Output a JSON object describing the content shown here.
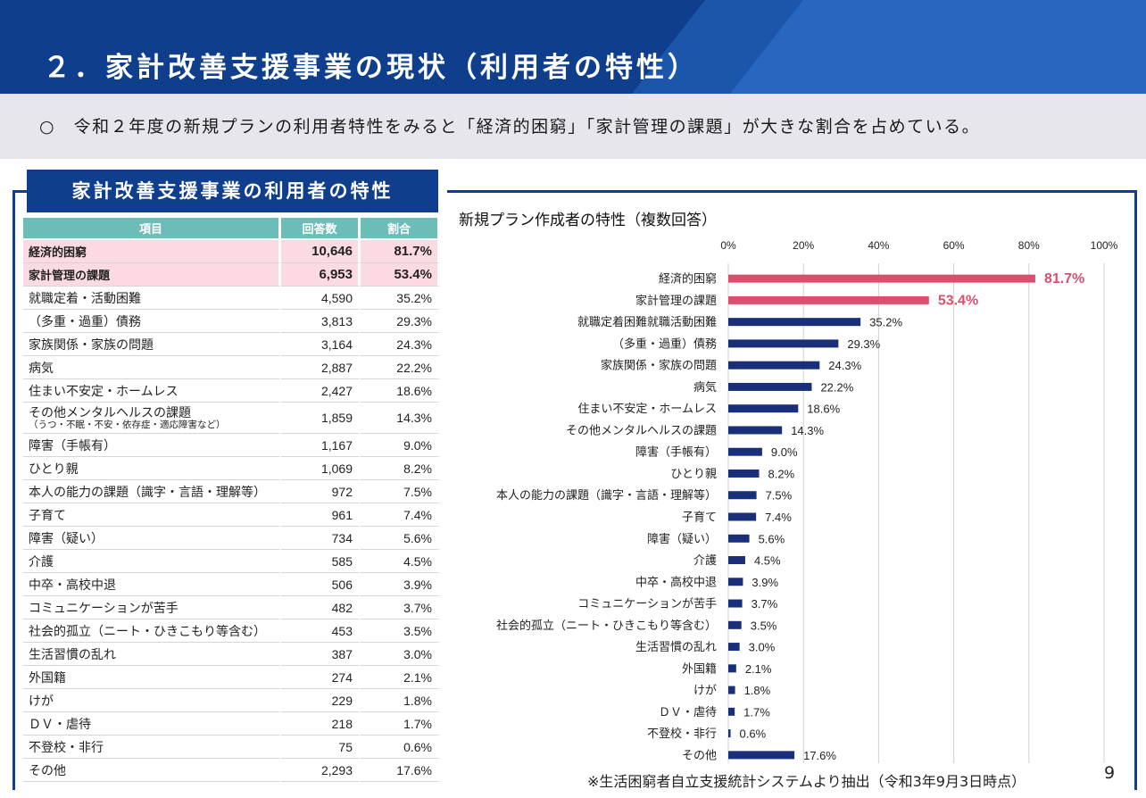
{
  "page": {
    "title": "２．家計改善支援事業の現状（利用者の特性）",
    "summary": "○　令和２年度の新規プランの利用者特性をみると「経済的困窮」「家計管理の課題」が大きな割合を占めている。",
    "panel_title": "家計改善支援事業の利用者の特性",
    "source_note": "※生活困窮者自立支援統計システムより抽出（令和3年9月3日時点）",
    "page_number": "9"
  },
  "table": {
    "headers": {
      "item": "項目",
      "count": "回答数",
      "ratio": "割合"
    },
    "rows": [
      {
        "item": "経済的困窮",
        "count": "10,646",
        "ratio": "81.7%"
      },
      {
        "item": "家計管理の課題",
        "count": "6,953",
        "ratio": "53.4%"
      },
      {
        "item": "就職定着・活動困難",
        "count": "4,590",
        "ratio": "35.2%"
      },
      {
        "item": "（多重・過重）債務",
        "count": "3,813",
        "ratio": "29.3%"
      },
      {
        "item": "家族関係・家族の問題",
        "count": "3,164",
        "ratio": "24.3%"
      },
      {
        "item": "病気",
        "count": "2,887",
        "ratio": "22.2%"
      },
      {
        "item": "住まい不安定・ホームレス",
        "count": "2,427",
        "ratio": "18.6%"
      },
      {
        "item": "その他メンタルヘルスの課題",
        "note": "（うつ・不眠・不安・依存症・適応障害など）",
        "count": "1,859",
        "ratio": "14.3%"
      },
      {
        "item": "障害（手帳有）",
        "count": "1,167",
        "ratio": "9.0%"
      },
      {
        "item": "ひとり親",
        "count": "1,069",
        "ratio": "8.2%"
      },
      {
        "item": "本人の能力の課題（識字・言語・理解等）",
        "count": "972",
        "ratio": "7.5%"
      },
      {
        "item": "子育て",
        "count": "961",
        "ratio": "7.4%"
      },
      {
        "item": "障害（疑い）",
        "count": "734",
        "ratio": "5.6%"
      },
      {
        "item": "介護",
        "count": "585",
        "ratio": "4.5%"
      },
      {
        "item": "中卒・高校中退",
        "count": "506",
        "ratio": "3.9%"
      },
      {
        "item": "コミュニケーションが苦手",
        "count": "482",
        "ratio": "3.7%"
      },
      {
        "item": "社会的孤立（ニート・ひきこもり等含む）",
        "count": "453",
        "ratio": "3.5%"
      },
      {
        "item": "生活習慣の乱れ",
        "count": "387",
        "ratio": "3.0%"
      },
      {
        "item": "外国籍",
        "count": "274",
        "ratio": "2.1%"
      },
      {
        "item": "けが",
        "count": "229",
        "ratio": "1.8%"
      },
      {
        "item": "ＤＶ・虐待",
        "count": "218",
        "ratio": "1.7%"
      },
      {
        "item": "不登校・非行",
        "count": "75",
        "ratio": "0.6%"
      },
      {
        "item": "その他",
        "count": "2,293",
        "ratio": "17.6%"
      }
    ]
  },
  "chart_data": {
    "type": "bar",
    "orientation": "horizontal",
    "title": "新規プラン作成者の特性（複数回答）",
    "x_ticks": [
      "0%",
      "20%",
      "40%",
      "60%",
      "80%",
      "100%"
    ],
    "xlim": [
      0,
      100
    ],
    "grid": true,
    "categories": [
      "経済的困窮",
      "家計管理の課題",
      "就職定着困難就職活動困難",
      "（多重・過重）債務",
      "家族関係・家族の問題",
      "病気",
      "住まい不安定・ホームレス",
      "その他メンタルヘルスの課題",
      "障害（手帳有）",
      "ひとり親",
      "本人の能力の課題（識字・言語・理解等）",
      "子育て",
      "障害（疑い）",
      "介護",
      "中卒・高校中退",
      "コミュニケーションが苦手",
      "社会的孤立（ニート・ひきこもり等含む）",
      "生活習慣の乱れ",
      "外国籍",
      "けが",
      "ＤＶ・虐待",
      "不登校・非行",
      "その他"
    ],
    "values": [
      81.7,
      53.4,
      35.2,
      29.3,
      24.3,
      22.2,
      18.6,
      14.3,
      9.0,
      8.2,
      7.5,
      7.4,
      5.6,
      4.5,
      3.9,
      3.7,
      3.5,
      3.0,
      2.1,
      1.8,
      1.7,
      0.6,
      17.6
    ],
    "value_labels": [
      "81.7%",
      "53.4%",
      "35.2%",
      "29.3%",
      "24.3%",
      "22.2%",
      "18.6%",
      "14.3%",
      "9.0%",
      "8.2%",
      "7.5%",
      "7.4%",
      "5.6%",
      "4.5%",
      "3.9%",
      "3.7%",
      "3.5%",
      "3.0%",
      "2.1%",
      "1.8%",
      "1.7%",
      "0.6%",
      "17.6%"
    ],
    "highlight_count": 2,
    "colors": {
      "bar": "#1a2f7a",
      "highlight": "#d94f6e",
      "grid": "#d0d0d0",
      "label": "#222222"
    }
  }
}
